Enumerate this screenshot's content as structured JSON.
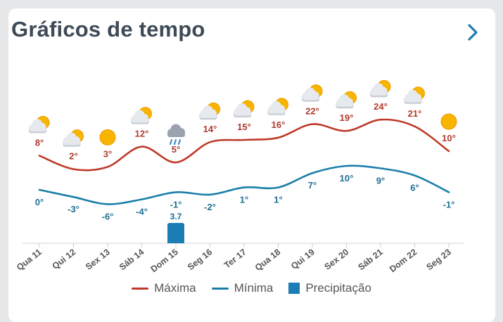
{
  "header": {
    "title": "Gráficos de tempo"
  },
  "legend": {
    "max_label": "Máxima",
    "min_label": "Mínima",
    "precip_label": "Precipitação"
  },
  "colors": {
    "max": "#c0392b",
    "min": "#1a7fa8",
    "precip": "#1b7db3",
    "title": "#3e4a57"
  },
  "chart_data": {
    "type": "line",
    "categories": [
      "Qua 11",
      "Qui 12",
      "Sex 13",
      "Sáb 14",
      "Dom 15",
      "Seg 16",
      "Ter 17",
      "Qua 18",
      "Qui 19",
      "Sex 20",
      "Sáb 21",
      "Dom 22",
      "Seg 23"
    ],
    "icons": [
      "partly-cloudy",
      "partly-cloudy",
      "sunny",
      "partly-cloudy",
      "rain-cloud",
      "partly-cloudy",
      "partly-cloudy",
      "partly-cloudy",
      "partly-cloudy",
      "partly-cloudy",
      "partly-cloudy",
      "partly-cloudy",
      "sunny"
    ],
    "series": [
      {
        "name": "Máxima",
        "values": [
          8,
          2,
          3,
          12,
          5,
          14,
          15,
          16,
          22,
          19,
          24,
          21,
          10
        ],
        "labels": [
          "8°",
          "2°",
          "3°",
          "12°",
          "5°",
          "14°",
          "15°",
          "16°",
          "22°",
          "19°",
          "24°",
          "21°",
          "10°"
        ]
      },
      {
        "name": "Mínima",
        "values": [
          0,
          -3,
          -6,
          -4,
          -1,
          -2,
          1,
          1,
          7,
          10,
          9,
          6,
          -1
        ],
        "labels": [
          "0°",
          "-3°",
          "-6°",
          "-4°",
          "-1°",
          "-2°",
          "1°",
          "1°",
          "7°",
          "10°",
          "9°",
          "6°",
          "-1°"
        ]
      },
      {
        "name": "Precipitação",
        "values": [
          0,
          0,
          0,
          0,
          3.7,
          0,
          0,
          0,
          0,
          0,
          0,
          0,
          0
        ],
        "labels": [
          "",
          "",
          "",
          "",
          "3.7",
          "",
          "",
          "",
          "",
          "",
          "",
          "",
          ""
        ]
      }
    ]
  }
}
